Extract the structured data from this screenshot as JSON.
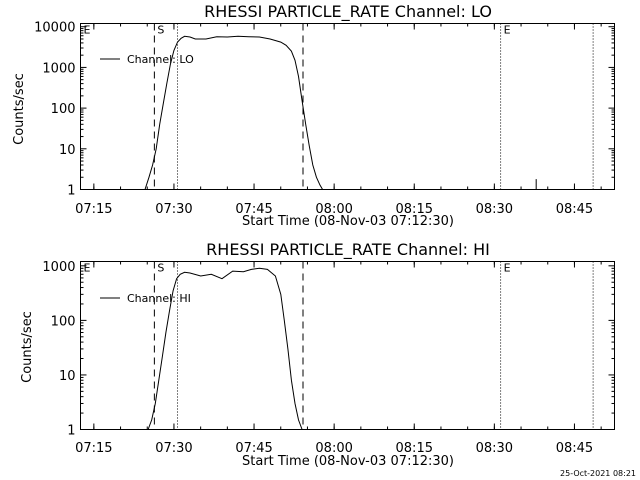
{
  "footer": {
    "timestamp": "25-Oct-2021 08:21"
  },
  "colors": {
    "foreground": "#000000",
    "background": "#ffffff"
  },
  "chart_data": [
    {
      "type": "line",
      "title": "RHESSI PARTICLE_RATE Channel: LO",
      "xlabel": "Start Time (08-Nov-03 07:12:30)",
      "ylabel": "Counts/sec",
      "yscale": "log",
      "xlim": [
        "07:12:30",
        "08:52:30"
      ],
      "ylim": [
        1,
        12000
      ],
      "x_ticks": [
        "07:15",
        "07:30",
        "07:45",
        "08:00",
        "08:15",
        "08:30",
        "08:45"
      ],
      "y_ticks": [
        "1",
        "10",
        "100",
        "1000",
        "10000"
      ],
      "legend": {
        "position": "top-left",
        "entries": [
          "Channel: LO"
        ]
      },
      "markers": [
        {
          "label": "E",
          "time": "07:12:30",
          "style": "dotted"
        },
        {
          "label": "S",
          "time": "07:26:20",
          "style": "dashed"
        },
        {
          "label": "",
          "time": "07:30:40",
          "style": "dotted"
        },
        {
          "label": "",
          "time": "07:54:10",
          "style": "dashed"
        },
        {
          "label": "E",
          "time": "08:31:10",
          "style": "dotted"
        },
        {
          "label": "",
          "time": "08:48:30",
          "style": "dotted"
        }
      ],
      "series": [
        {
          "name": "Channel: LO",
          "x": [
            "07:24:35",
            "07:25:20",
            "07:26:00",
            "07:26:40",
            "07:27:20",
            "07:28:00",
            "07:28:40",
            "07:29:20",
            "07:30:00",
            "07:30:40",
            "07:31:20",
            "07:32:00",
            "07:33:00",
            "07:34:00",
            "07:36:00",
            "07:38:00",
            "07:40:00",
            "07:42:00",
            "07:44:00",
            "07:46:00",
            "07:48:00",
            "07:50:00",
            "07:51:00",
            "07:52:00",
            "07:52:40",
            "07:53:20",
            "07:54:00",
            "07:54:40",
            "07:55:20",
            "07:56:00",
            "07:56:40",
            "07:57:20",
            "07:57:50"
          ],
          "y": [
            1,
            2,
            4,
            10,
            40,
            130,
            400,
            1200,
            2600,
            4200,
            5200,
            5800,
            5600,
            5000,
            5000,
            5700,
            5600,
            5800,
            5700,
            5600,
            5000,
            4200,
            3500,
            2500,
            1500,
            600,
            150,
            40,
            12,
            4,
            2,
            1.3,
            1
          ]
        }
      ],
      "spike": {
        "time": "08:37:50",
        "value": 1.8
      }
    },
    {
      "type": "line",
      "title": "RHESSI PARTICLE_RATE Channel: HI",
      "xlabel": "Start Time (08-Nov-03 07:12:30)",
      "ylabel": "Counts/sec",
      "yscale": "log",
      "xlim": [
        "07:12:30",
        "08:52:30"
      ],
      "ylim": [
        1,
        1200
      ],
      "x_ticks": [
        "07:15",
        "07:30",
        "07:45",
        "08:00",
        "08:15",
        "08:30",
        "08:45"
      ],
      "y_ticks": [
        "1",
        "10",
        "100",
        "1000"
      ],
      "legend": {
        "position": "top-left",
        "entries": [
          "Channel: HI"
        ]
      },
      "markers": [
        {
          "label": "E",
          "time": "07:12:30",
          "style": "dotted"
        },
        {
          "label": "S",
          "time": "07:26:20",
          "style": "dashed"
        },
        {
          "label": "",
          "time": "07:30:40",
          "style": "dotted"
        },
        {
          "label": "",
          "time": "07:54:10",
          "style": "dashed"
        },
        {
          "label": "E",
          "time": "08:31:10",
          "style": "dotted"
        },
        {
          "label": "",
          "time": "08:48:30",
          "style": "dotted"
        }
      ],
      "series": [
        {
          "name": "Channel: HI",
          "x": [
            "07:25:10",
            "07:25:50",
            "07:26:30",
            "07:27:10",
            "07:27:50",
            "07:28:30",
            "07:29:10",
            "07:29:50",
            "07:30:30",
            "07:31:10",
            "07:32:00",
            "07:33:00",
            "07:35:00",
            "07:37:00",
            "07:39:00",
            "07:41:00",
            "07:43:00",
            "07:44:30",
            "07:46:00",
            "07:47:30",
            "07:49:00",
            "07:50:00",
            "07:50:40",
            "07:51:20",
            "07:52:00",
            "07:52:40",
            "07:53:20",
            "07:54:00"
          ],
          "y": [
            1,
            1.5,
            3,
            8,
            22,
            60,
            150,
            350,
            580,
            700,
            760,
            740,
            650,
            700,
            580,
            800,
            780,
            860,
            900,
            860,
            650,
            300,
            100,
            30,
            8,
            3,
            1.5,
            1
          ]
        }
      ]
    }
  ]
}
